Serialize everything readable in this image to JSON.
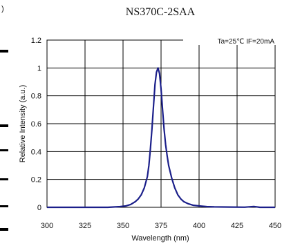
{
  "page_fragment": ")",
  "chart_data": {
    "type": "line",
    "title": "NS370C-2SAA",
    "condition": "Ta=25℃ IF=20mA",
    "xlabel": "Wavelength (nm)",
    "ylabel": "Relative Intensity (a.u.)",
    "xlim": [
      300,
      450
    ],
    "ylim": [
      0,
      1.2
    ],
    "x_ticks": [
      "300",
      "325",
      "350",
      "375",
      "400",
      "425",
      "450"
    ],
    "y_ticks": [
      "0",
      "0.2",
      "0.4",
      "0.6",
      "0.8",
      "1",
      "1.2"
    ],
    "grid": true,
    "series": [
      {
        "color": "#1b1f8a",
        "x": [
          300,
          340,
          348,
          352,
          355,
          358,
          360,
          362,
          364,
          366,
          367,
          368,
          369,
          370,
          371,
          372,
          373,
          374,
          375,
          376,
          377,
          378,
          379,
          380,
          382,
          384,
          386,
          388,
          390,
          393,
          396,
          400,
          405,
          410,
          420,
          430,
          436,
          440,
          450
        ],
        "y": [
          0.0,
          0.0,
          0.005,
          0.01,
          0.02,
          0.04,
          0.06,
          0.09,
          0.14,
          0.22,
          0.3,
          0.42,
          0.56,
          0.72,
          0.88,
          0.97,
          1.0,
          0.96,
          0.85,
          0.7,
          0.56,
          0.45,
          0.37,
          0.3,
          0.21,
          0.14,
          0.09,
          0.06,
          0.04,
          0.025,
          0.015,
          0.01,
          0.005,
          0.003,
          0.002,
          0.001,
          0.006,
          0.0,
          0.0
        ]
      }
    ]
  }
}
